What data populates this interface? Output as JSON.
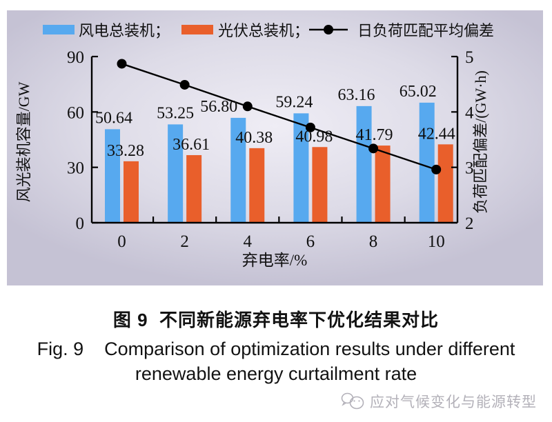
{
  "figure": {
    "caption_zh": "图 9  不同新能源弃电率下优化结果对比",
    "caption_en_line1": "Fig. 9    Comparison of optimization results under different",
    "caption_en_line2": "renewable energy curtailment rate",
    "watermark_text": "应对气候变化与能源转型"
  },
  "chart_data": {
    "type": "bar",
    "title": "",
    "categories": [
      "0",
      "2",
      "4",
      "6",
      "8",
      "10"
    ],
    "xlabel": "弃电率/%",
    "ylabel_left": "风光装机容量/GW",
    "ylabel_right": "负荷匹配偏差/(GW·h)",
    "ylim_left": [
      0,
      90
    ],
    "yticks_left": [
      0,
      30,
      60,
      90
    ],
    "ylim_right": [
      2,
      5
    ],
    "yticks_right": [
      2,
      3,
      4,
      5
    ],
    "grid": false,
    "legend_position": "top",
    "legend": [
      "风电总装机；",
      "光伏总装机；",
      "日负荷匹配平均偏差"
    ],
    "series": [
      {
        "name": "风电总装机",
        "type": "bar",
        "axis": "left",
        "color": "#57a9ef",
        "values": [
          50.64,
          53.25,
          56.8,
          59.24,
          63.16,
          65.02
        ],
        "labels_visible": true
      },
      {
        "name": "光伏总装机",
        "type": "bar",
        "axis": "left",
        "color": "#e95f2b",
        "values": [
          33.28,
          36.61,
          40.38,
          40.98,
          41.79,
          42.44
        ],
        "labels_visible": true
      },
      {
        "name": "日负荷匹配平均偏差",
        "type": "line",
        "axis": "right",
        "color": "#000000",
        "marker": "circle",
        "values": [
          4.87,
          4.49,
          4.1,
          3.72,
          3.34,
          2.96
        ],
        "labels_visible": false
      }
    ]
  }
}
